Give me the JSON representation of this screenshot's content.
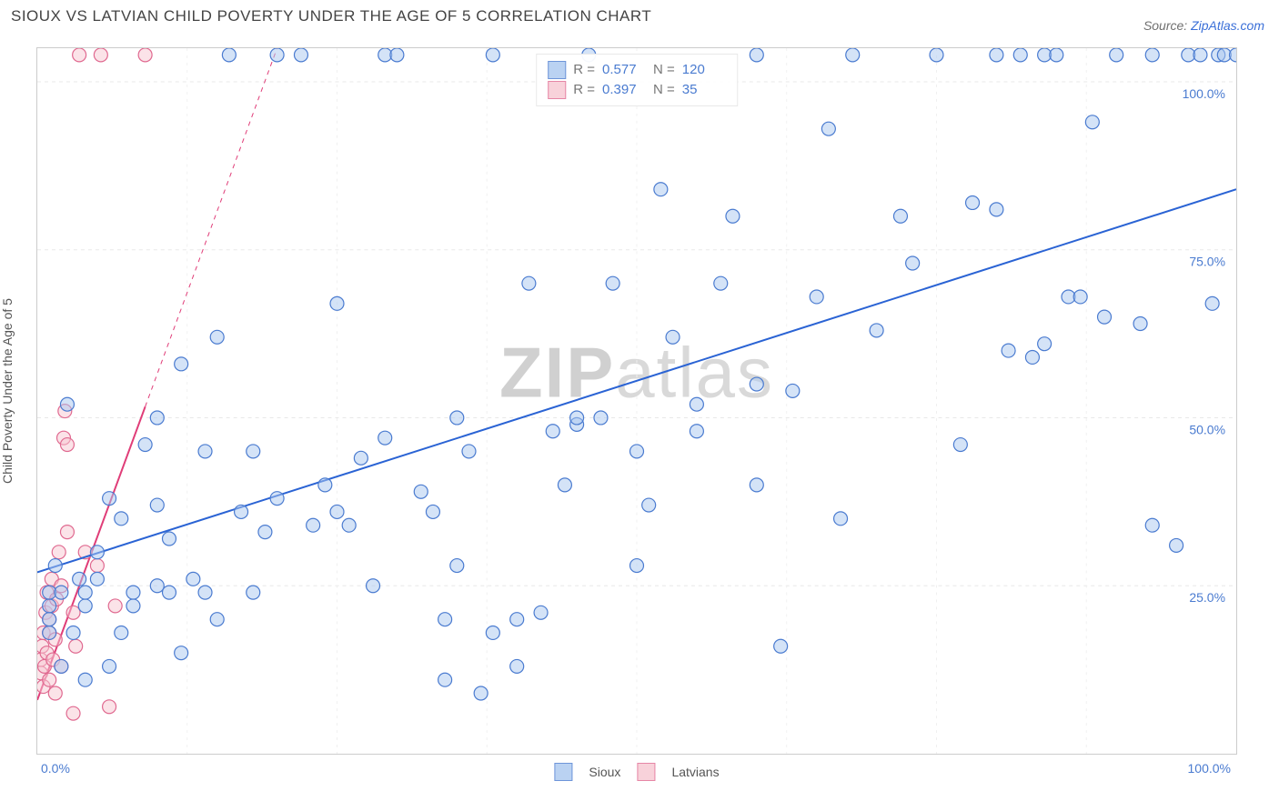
{
  "title": "SIOUX VS LATVIAN CHILD POVERTY UNDER THE AGE OF 5 CORRELATION CHART",
  "source_label": "Source: ",
  "source_name": "ZipAtlas.com",
  "ylabel": "Child Poverty Under the Age of 5",
  "watermark_a": "ZIP",
  "watermark_b": "atlas",
  "chart": {
    "type": "scatter",
    "xlim": [
      0,
      100
    ],
    "ylim": [
      0,
      105
    ],
    "x_ticks": [
      0,
      100
    ],
    "x_tick_labels": [
      "0.0%",
      "100.0%"
    ],
    "y_ticks": [
      25,
      50,
      75,
      100
    ],
    "y_tick_labels": [
      "25.0%",
      "50.0%",
      "75.0%",
      "100.0%"
    ],
    "x_grid": [
      12.5,
      25,
      37.5,
      50,
      62.5,
      75,
      87.5
    ],
    "grid_color": "#e8e8e8",
    "background_color": "#ffffff",
    "marker_radius": 7.5,
    "marker_stroke_width": 1.2,
    "series": {
      "sioux": {
        "label": "Sioux",
        "R": "0.577",
        "N": "120",
        "fill": "#a9c8ef",
        "stroke": "#4a7bd0",
        "fill_opacity": 0.5,
        "trend": {
          "x1": 0,
          "y1": 27,
          "x2": 100,
          "y2": 84,
          "color": "#2a63d4",
          "width": 2,
          "dash_after_x": null
        },
        "points": [
          [
            1,
            18
          ],
          [
            1,
            20
          ],
          [
            1,
            22
          ],
          [
            1,
            24
          ],
          [
            1.5,
            28
          ],
          [
            2,
            13
          ],
          [
            2,
            24
          ],
          [
            2.5,
            52
          ],
          [
            3,
            18
          ],
          [
            3.5,
            26
          ],
          [
            4,
            11
          ],
          [
            4,
            22
          ],
          [
            4,
            24
          ],
          [
            5,
            26
          ],
          [
            5,
            30
          ],
          [
            6,
            13
          ],
          [
            6,
            38
          ],
          [
            7,
            18
          ],
          [
            7,
            35
          ],
          [
            8,
            24
          ],
          [
            8,
            22
          ],
          [
            9,
            46
          ],
          [
            10,
            50
          ],
          [
            10,
            25
          ],
          [
            10,
            37
          ],
          [
            11,
            24
          ],
          [
            11,
            32
          ],
          [
            12,
            15
          ],
          [
            12,
            58
          ],
          [
            13,
            26
          ],
          [
            14,
            45
          ],
          [
            14,
            24
          ],
          [
            15,
            20
          ],
          [
            15,
            62
          ],
          [
            16,
            104
          ],
          [
            17,
            36
          ],
          [
            18,
            45
          ],
          [
            18,
            24
          ],
          [
            19,
            33
          ],
          [
            20,
            38
          ],
          [
            20,
            104
          ],
          [
            22,
            104
          ],
          [
            23,
            34
          ],
          [
            24,
            40
          ],
          [
            25,
            67
          ],
          [
            26,
            34
          ],
          [
            27,
            44
          ],
          [
            28,
            25
          ],
          [
            29,
            47
          ],
          [
            29,
            104
          ],
          [
            30,
            104
          ],
          [
            32,
            39
          ],
          [
            33,
            36
          ],
          [
            34,
            11
          ],
          [
            34,
            20
          ],
          [
            35,
            28
          ],
          [
            36,
            45
          ],
          [
            37,
            9
          ],
          [
            38,
            18
          ],
          [
            38,
            104
          ],
          [
            40,
            13
          ],
          [
            40,
            20
          ],
          [
            41,
            70
          ],
          [
            42,
            21
          ],
          [
            43,
            48
          ],
          [
            44,
            40
          ],
          [
            45,
            49
          ],
          [
            46,
            104
          ],
          [
            47,
            50
          ],
          [
            48,
            70
          ],
          [
            50,
            28
          ],
          [
            51,
            37
          ],
          [
            52,
            84
          ],
          [
            53,
            62
          ],
          [
            55,
            48
          ],
          [
            57,
            70
          ],
          [
            58,
            80
          ],
          [
            60,
            40
          ],
          [
            60,
            104
          ],
          [
            62,
            16
          ],
          [
            63,
            54
          ],
          [
            65,
            68
          ],
          [
            66,
            93
          ],
          [
            67,
            35
          ],
          [
            68,
            104
          ],
          [
            70,
            63
          ],
          [
            72,
            80
          ],
          [
            73,
            73
          ],
          [
            75,
            104
          ],
          [
            77,
            46
          ],
          [
            78,
            82
          ],
          [
            80,
            81
          ],
          [
            80,
            104
          ],
          [
            81,
            60
          ],
          [
            82,
            104
          ],
          [
            83,
            59
          ],
          [
            84,
            104
          ],
          [
            84,
            61
          ],
          [
            85,
            104
          ],
          [
            86,
            68
          ],
          [
            87,
            68
          ],
          [
            88,
            94
          ],
          [
            89,
            65
          ],
          [
            90,
            104
          ],
          [
            92,
            64
          ],
          [
            93,
            34
          ],
          [
            93,
            104
          ],
          [
            95,
            31
          ],
          [
            96,
            104
          ],
          [
            97,
            104
          ],
          [
            98,
            67
          ],
          [
            98.5,
            104
          ],
          [
            99,
            104
          ],
          [
            100,
            104
          ],
          [
            45,
            50
          ],
          [
            50,
            45
          ],
          [
            55,
            52
          ],
          [
            60,
            55
          ],
          [
            35,
            50
          ],
          [
            25,
            36
          ]
        ]
      },
      "latvians": {
        "label": "Latvians",
        "R": "0.397",
        "N": "35",
        "fill": "#f7c7d1",
        "stroke": "#e06990",
        "fill_opacity": 0.5,
        "trend": {
          "x1": 0,
          "y1": 8,
          "x2": 20,
          "y2": 105,
          "color": "#e03d78",
          "width": 2,
          "dash_after_x": 9
        },
        "points": [
          [
            0.3,
            12
          ],
          [
            0.3,
            14
          ],
          [
            0.4,
            16
          ],
          [
            0.5,
            18
          ],
          [
            0.5,
            10
          ],
          [
            0.6,
            13
          ],
          [
            0.7,
            21
          ],
          [
            0.8,
            15
          ],
          [
            0.8,
            24
          ],
          [
            1,
            11
          ],
          [
            1,
            18
          ],
          [
            1,
            20
          ],
          [
            1.2,
            22
          ],
          [
            1.2,
            26
          ],
          [
            1.3,
            14
          ],
          [
            1.5,
            9
          ],
          [
            1.5,
            17
          ],
          [
            1.6,
            23
          ],
          [
            1.8,
            30
          ],
          [
            2,
            13
          ],
          [
            2,
            25
          ],
          [
            2.2,
            47
          ],
          [
            2.3,
            51
          ],
          [
            2.5,
            46
          ],
          [
            2.5,
            33
          ],
          [
            3,
            21
          ],
          [
            3,
            6
          ],
          [
            3.2,
            16
          ],
          [
            3.5,
            104
          ],
          [
            4,
            30
          ],
          [
            5,
            28
          ],
          [
            5.3,
            104
          ],
          [
            6,
            7
          ],
          [
            6.5,
            22
          ],
          [
            9,
            104
          ]
        ]
      }
    }
  }
}
